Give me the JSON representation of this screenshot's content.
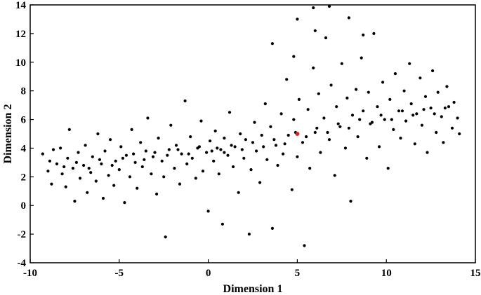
{
  "chart_data": {
    "type": "scatter",
    "xlabel": "Dimension 1",
    "ylabel": "Dimension 2",
    "xlim": [
      -10,
      15
    ],
    "ylim": [
      -4,
      14
    ],
    "xticks": [
      "-10",
      "-5",
      "0",
      "5",
      "10",
      "15"
    ],
    "yticks": [
      "-4",
      "-2",
      "0",
      "2",
      "4",
      "6",
      "8",
      "10",
      "12",
      "14"
    ],
    "grid": false,
    "legend": "none",
    "point_color": "#000000",
    "highlight_color": "#d62728",
    "series": [
      {
        "values": [
          [
            -9.3,
            3.6
          ],
          [
            -9.0,
            2.4
          ],
          [
            -8.8,
            1.5
          ],
          [
            -8.7,
            3.9
          ],
          [
            -8.5,
            2.9
          ],
          [
            -8.3,
            4.0
          ],
          [
            -8.2,
            2.2
          ],
          [
            -8.0,
            1.3
          ],
          [
            -7.9,
            3.3
          ],
          [
            -7.8,
            5.3
          ],
          [
            -7.6,
            2.6
          ],
          [
            -7.5,
            0.3
          ],
          [
            -7.3,
            3.7
          ],
          [
            -7.2,
            1.9
          ],
          [
            -7.0,
            2.8
          ],
          [
            -6.9,
            4.2
          ],
          [
            -6.8,
            0.9
          ],
          [
            -6.6,
            2.3
          ],
          [
            -6.5,
            3.4
          ],
          [
            -6.3,
            1.7
          ],
          [
            -6.2,
            5.0
          ],
          [
            -6.0,
            2.9
          ],
          [
            -5.9,
            0.5
          ],
          [
            -5.8,
            3.8
          ],
          [
            -5.6,
            2.1
          ],
          [
            -5.5,
            4.6
          ],
          [
            -5.3,
            1.4
          ],
          [
            -5.2,
            3.1
          ],
          [
            -5.0,
            2.5
          ],
          [
            -4.9,
            4.1
          ],
          [
            -4.7,
            0.2
          ],
          [
            -4.6,
            3.5
          ],
          [
            -4.4,
            2.0
          ],
          [
            -4.3,
            5.3
          ],
          [
            -4.1,
            3.0
          ],
          [
            -4.0,
            1.2
          ],
          [
            -3.8,
            4.4
          ],
          [
            -3.7,
            2.7
          ],
          [
            -3.5,
            3.8
          ],
          [
            -3.4,
            6.1
          ],
          [
            -3.2,
            2.2
          ],
          [
            -3.1,
            3.4
          ],
          [
            -2.9,
            0.8
          ],
          [
            -2.8,
            4.7
          ],
          [
            -2.6,
            3.1
          ],
          [
            -2.5,
            2.0
          ],
          [
            -2.4,
            -2.2
          ],
          [
            -2.2,
            3.9
          ],
          [
            -2.1,
            5.6
          ],
          [
            -1.9,
            2.6
          ],
          [
            -1.8,
            4.2
          ],
          [
            -1.6,
            1.5
          ],
          [
            -1.5,
            3.6
          ],
          [
            -1.3,
            7.3
          ],
          [
            -1.2,
            2.9
          ],
          [
            -1.0,
            4.8
          ],
          [
            -0.9,
            3.3
          ],
          [
            -0.7,
            1.9
          ],
          [
            -0.6,
            4.0
          ],
          [
            -0.4,
            5.9
          ],
          [
            -0.3,
            2.4
          ],
          [
            -0.1,
            3.7
          ],
          [
            0.0,
            -0.4
          ],
          [
            0.1,
            4.5
          ],
          [
            0.3,
            3.1
          ],
          [
            0.4,
            5.2
          ],
          [
            0.6,
            2.2
          ],
          [
            0.7,
            3.9
          ],
          [
            0.8,
            -1.3
          ],
          [
            0.9,
            4.7
          ],
          [
            1.1,
            3.5
          ],
          [
            1.2,
            6.5
          ],
          [
            1.4,
            2.7
          ],
          [
            1.5,
            4.1
          ],
          [
            1.7,
            0.9
          ],
          [
            1.8,
            5.0
          ],
          [
            2.0,
            3.3
          ],
          [
            2.1,
            4.6
          ],
          [
            2.3,
            -2.0
          ],
          [
            2.4,
            2.5
          ],
          [
            2.6,
            5.8
          ],
          [
            2.7,
            3.8
          ],
          [
            2.9,
            1.6
          ],
          [
            3.0,
            4.9
          ],
          [
            3.2,
            7.1
          ],
          [
            3.3,
            3.2
          ],
          [
            3.5,
            5.5
          ],
          [
            3.6,
            -1.6
          ],
          [
            3.8,
            4.2
          ],
          [
            3.9,
            2.8
          ],
          [
            4.1,
            6.4
          ],
          [
            4.2,
            3.6
          ],
          [
            4.4,
            8.8
          ],
          [
            4.5,
            4.9
          ],
          [
            4.7,
            1.1
          ],
          [
            4.8,
            6.0
          ],
          [
            5.0,
            3.4
          ],
          [
            5.1,
            7.4
          ],
          [
            5.3,
            4.4
          ],
          [
            5.4,
            -2.8
          ],
          [
            5.6,
            6.7
          ],
          [
            5.7,
            2.6
          ],
          [
            5.9,
            9.6
          ],
          [
            6.0,
            5.1
          ],
          [
            6.2,
            7.8
          ],
          [
            6.3,
            3.7
          ],
          [
            6.5,
            6.1
          ],
          [
            6.6,
            11.7
          ],
          [
            6.8,
            4.6
          ],
          [
            6.9,
            8.4
          ],
          [
            7.1,
            2.1
          ],
          [
            7.2,
            6.9
          ],
          [
            7.4,
            5.5
          ],
          [
            7.5,
            9.9
          ],
          [
            7.7,
            4.0
          ],
          [
            7.8,
            7.5
          ],
          [
            8.0,
            0.3
          ],
          [
            8.1,
            6.3
          ],
          [
            8.3,
            8.1
          ],
          [
            8.4,
            4.8
          ],
          [
            8.6,
            10.3
          ],
          [
            8.7,
            6.6
          ],
          [
            8.9,
            3.3
          ],
          [
            9.0,
            7.9
          ],
          [
            9.2,
            5.8
          ],
          [
            9.3,
            12.0
          ],
          [
            9.5,
            6.9
          ],
          [
            9.6,
            4.1
          ],
          [
            9.8,
            8.6
          ],
          [
            9.9,
            6.0
          ],
          [
            10.1,
            2.6
          ],
          [
            10.2,
            7.4
          ],
          [
            10.4,
            5.3
          ],
          [
            10.5,
            9.2
          ],
          [
            10.7,
            6.6
          ],
          [
            10.8,
            4.7
          ],
          [
            11.0,
            8.0
          ],
          [
            11.1,
            5.9
          ],
          [
            11.3,
            9.9
          ],
          [
            11.4,
            7.1
          ],
          [
            11.6,
            4.3
          ],
          [
            11.7,
            6.4
          ],
          [
            11.9,
            8.9
          ],
          [
            12.0,
            5.6
          ],
          [
            12.2,
            7.6
          ],
          [
            12.3,
            3.7
          ],
          [
            12.5,
            6.8
          ],
          [
            12.6,
            9.4
          ],
          [
            12.8,
            5.1
          ],
          [
            12.9,
            7.9
          ],
          [
            13.1,
            6.2
          ],
          [
            13.2,
            4.4
          ],
          [
            13.4,
            8.3
          ],
          [
            13.5,
            6.9
          ],
          [
            13.7,
            5.4
          ],
          [
            13.8,
            7.2
          ],
          [
            14.0,
            6.1
          ],
          [
            14.1,
            5.0
          ],
          [
            -8.9,
            3.1
          ],
          [
            -8.1,
            2.7
          ],
          [
            -7.4,
            3.0
          ],
          [
            -6.7,
            2.6
          ],
          [
            -6.1,
            3.2
          ],
          [
            -5.4,
            2.8
          ],
          [
            -4.8,
            3.3
          ],
          [
            -4.2,
            3.6
          ],
          [
            -3.6,
            3.2
          ],
          [
            -3.0,
            3.7
          ],
          [
            -2.3,
            3.5
          ],
          [
            -1.7,
            3.9
          ],
          [
            -1.1,
            3.6
          ],
          [
            -0.5,
            4.1
          ],
          [
            0.2,
            3.8
          ],
          [
            0.5,
            4.0
          ],
          [
            0.9,
            3.7
          ],
          [
            1.3,
            4.2
          ],
          [
            1.9,
            3.9
          ],
          [
            2.5,
            4.4
          ],
          [
            3.1,
            4.1
          ],
          [
            3.7,
            4.6
          ],
          [
            4.3,
            4.3
          ],
          [
            4.9,
            5.1
          ],
          [
            5.5,
            4.8
          ],
          [
            6.1,
            5.4
          ],
          [
            6.7,
            5.1
          ],
          [
            7.3,
            5.7
          ],
          [
            7.9,
            5.4
          ],
          [
            8.5,
            6.0
          ],
          [
            9.1,
            5.7
          ],
          [
            9.7,
            6.3
          ],
          [
            10.3,
            6.0
          ],
          [
            10.9,
            6.6
          ],
          [
            11.5,
            6.3
          ],
          [
            12.1,
            6.7
          ],
          [
            12.7,
            6.4
          ],
          [
            13.3,
            6.8
          ],
          [
            5.0,
            13.0
          ],
          [
            5.9,
            13.8
          ],
          [
            6.8,
            13.9
          ],
          [
            7.9,
            13.1
          ],
          [
            3.6,
            11.3
          ],
          [
            6.0,
            12.2
          ],
          [
            8.7,
            11.9
          ],
          [
            4.8,
            10.4
          ]
        ]
      }
    ],
    "highlight_point": [
      5.0,
      5.0
    ]
  }
}
